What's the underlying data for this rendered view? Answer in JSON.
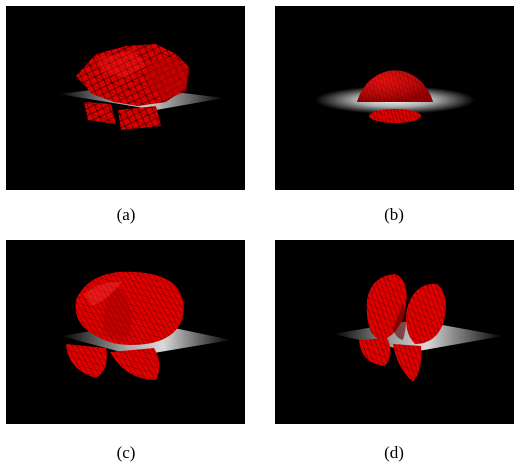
{
  "panels": [
    {
      "id": "a",
      "caption": "(a)",
      "content": "faceted-red-mesh-blob"
    },
    {
      "id": "b",
      "caption": "(b)",
      "content": "red-mesh-sphere"
    },
    {
      "id": "c",
      "caption": "(c)",
      "content": "smooth-red-mesh-blob"
    },
    {
      "id": "d",
      "caption": "(d)",
      "content": "split-red-mesh-blob"
    }
  ],
  "colors": {
    "background": "#000000",
    "mesh_fill": "#e00000",
    "mesh_lines": "#3a0000",
    "plane": "#c8c8c8"
  }
}
